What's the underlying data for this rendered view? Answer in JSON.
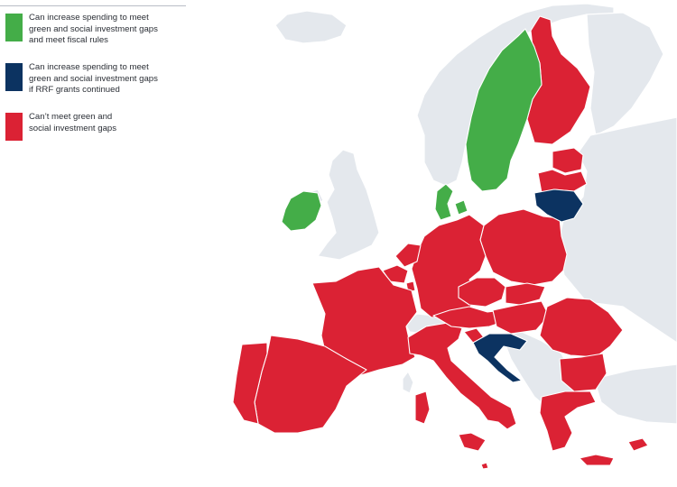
{
  "legend": {
    "items": [
      {
        "label": "Can increase spending to meet\ngreen and social investment gaps\nand meet fiscal rules",
        "color": "#44ad48"
      },
      {
        "label": "Can increase spending to meet\ngreen and social investment gaps\nif RRF grants continued",
        "color": "#0c3361"
      },
      {
        "label": "Can’t meet green and\nsocial investment gaps",
        "color": "#db2234"
      }
    ]
  },
  "map": {
    "non_eu_color": "#e4e8ed",
    "country_groups": {
      "green": [
        "Sweden",
        "Denmark",
        "Ireland"
      ],
      "navy": [
        "Lithuania",
        "Croatia"
      ],
      "red": [
        "Finland",
        "Estonia",
        "Latvia",
        "Poland",
        "Germany",
        "Netherlands",
        "Belgium",
        "Luxembourg",
        "France",
        "Spain",
        "Portugal",
        "Italy",
        "Austria",
        "Czechia",
        "Slovakia",
        "Hungary",
        "Slovenia",
        "Romania",
        "Bulgaria",
        "Greece",
        "Cyprus",
        "Malta"
      ]
    }
  }
}
